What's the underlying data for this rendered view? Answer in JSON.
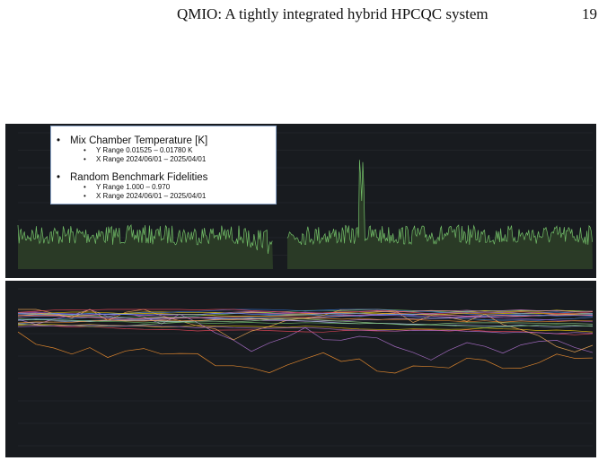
{
  "header": {
    "title": "QMIO: A tightly integrated hybrid HPCQC system",
    "page": "19"
  },
  "legend": {
    "items": [
      {
        "title": "Mix Chamber Temperature [K]",
        "lines": [
          "Y Range 0.01525 – 0.01780 K",
          "X Range 2024/06/01 – 2025/04/01"
        ]
      },
      {
        "title": "Random Benchmark Fidelities",
        "lines": [
          "Y Range 1.000 – 0.970",
          "X Range 2024/06/01 – 2025/04/01"
        ]
      }
    ]
  }
}
